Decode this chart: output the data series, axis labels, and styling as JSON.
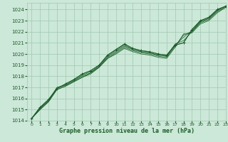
{
  "background_color": "#cce8d8",
  "grid_color": "#a0c8b0",
  "line_color": "#1a5c28",
  "title": "Graphe pression niveau de la mer (hPa)",
  "xlim": [
    -0.5,
    23
  ],
  "ylim": [
    1014,
    1024.6
  ],
  "yticks": [
    1014,
    1015,
    1016,
    1017,
    1018,
    1019,
    1020,
    1021,
    1022,
    1023,
    1024
  ],
  "xticks": [
    0,
    1,
    2,
    3,
    4,
    5,
    6,
    7,
    8,
    9,
    10,
    11,
    12,
    13,
    14,
    15,
    16,
    17,
    18,
    19,
    20,
    21,
    22,
    23
  ],
  "series": [
    [
      1014.2,
      1015.2,
      1015.9,
      1016.9,
      1017.3,
      1017.7,
      1018.2,
      1018.5,
      1019.0,
      1019.9,
      1020.4,
      1020.9,
      1020.5,
      1020.3,
      1020.2,
      1020.0,
      1019.9,
      1020.8,
      1021.0,
      1022.2,
      1023.0,
      1023.3,
      1024.0,
      1024.3
    ],
    [
      1014.2,
      1015.1,
      1015.8,
      1017.0,
      1017.2,
      1017.6,
      1018.1,
      1018.4,
      1018.9,
      1019.8,
      1020.3,
      1020.8,
      1020.4,
      1020.2,
      1020.1,
      1019.9,
      1019.8,
      1020.9,
      1021.2,
      1022.0,
      1022.9,
      1023.2,
      1023.9,
      1024.3
    ],
    [
      1014.2,
      1015.1,
      1015.8,
      1016.9,
      1017.2,
      1017.6,
      1018.0,
      1018.3,
      1018.9,
      1019.7,
      1020.2,
      1020.7,
      1020.4,
      1020.2,
      1020.1,
      1019.9,
      1019.8,
      1020.8,
      1021.5,
      1022.1,
      1022.9,
      1023.2,
      1023.9,
      1024.3
    ],
    [
      1014.2,
      1015.0,
      1015.7,
      1016.8,
      1017.1,
      1017.5,
      1017.9,
      1018.3,
      1018.8,
      1019.6,
      1020.1,
      1020.6,
      1020.3,
      1020.1,
      1020.0,
      1019.8,
      1019.7,
      1020.7,
      1021.7,
      1022.0,
      1022.8,
      1023.1,
      1023.8,
      1024.2
    ],
    [
      1014.2,
      1015.0,
      1015.7,
      1016.8,
      1017.1,
      1017.5,
      1017.9,
      1018.2,
      1018.8,
      1019.6,
      1020.0,
      1020.5,
      1020.2,
      1020.0,
      1019.9,
      1019.7,
      1019.6,
      1020.6,
      1021.8,
      1021.9,
      1022.7,
      1023.0,
      1023.7,
      1024.2
    ]
  ],
  "marker_series": {
    "idx": 0,
    "data": [
      1014.2,
      1015.2,
      1015.9,
      1016.9,
      1017.3,
      1017.7,
      1018.2,
      1018.5,
      1019.0,
      1019.9,
      1020.4,
      1020.9,
      1020.5,
      1020.3,
      1020.2,
      1020.0,
      1019.9,
      1020.8,
      1021.0,
      1022.2,
      1023.0,
      1023.3,
      1024.0,
      1024.3
    ]
  },
  "title_fontsize": 6,
  "tick_fontsize": 4.5,
  "ytick_fontsize": 5
}
